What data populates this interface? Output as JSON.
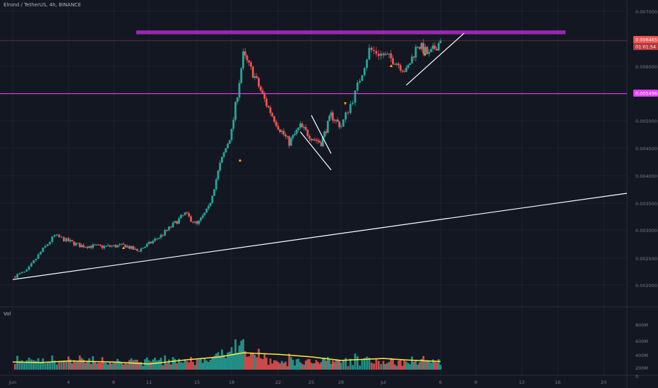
{
  "header": {
    "symbol_title": "Elrond / TetherUS, 4h, BINANCE"
  },
  "volume_pane": {
    "label": "Vol",
    "y_ticks": [
      "800M",
      "600M",
      "400M",
      "200M",
      "0"
    ]
  },
  "price_badges": {
    "last": "0.006465",
    "countdown": "01:01:54",
    "level": "0.005496"
  },
  "colors": {
    "background": "#131722",
    "up": "#26a69a",
    "down": "#ef5350",
    "resistance_zone": "#9c27b0",
    "horizontal_line": "#e040fb",
    "trendline": "#ffffff",
    "volume_ma": "#ffeb3b",
    "markers": "#ffb300",
    "last_badge": "#ef5350"
  },
  "chart_data": {
    "type": "candlestick",
    "title": "Elrond / TetherUS, 4h, BINANCE",
    "x_tick_labels": [
      "Jun",
      "4",
      "8",
      "11",
      "15",
      "18",
      "22",
      "25",
      "28",
      "Jul",
      "6",
      "9",
      "13",
      "16",
      "20"
    ],
    "y_tick_labels": [
      "0.007000",
      "0.006500",
      "0.006000",
      "0.005500",
      "0.005000",
      "0.004500",
      "0.004000",
      "0.003500",
      "0.003000",
      "0.002500",
      "0.002000"
    ],
    "price_range": [
      0.0019,
      0.0071
    ],
    "volume_range_millions": [
      0,
      800
    ],
    "close_path": [
      [
        "May 31",
        0.00215
      ],
      [
        "Jun 1",
        0.00225
      ],
      [
        "Jun 2",
        0.0026
      ],
      [
        "Jun 3",
        0.0029
      ],
      [
        "Jun 4",
        0.0028
      ],
      [
        "Jun 5",
        0.00272
      ],
      [
        "Jun 7",
        0.0027
      ],
      [
        "Jun 9",
        0.00272
      ],
      [
        "Jun 10",
        0.00262
      ],
      [
        "Jun 11",
        0.00275
      ],
      [
        "Jun 12",
        0.0029
      ],
      [
        "Jun 13",
        0.0031
      ],
      [
        "Jun 14",
        0.0033
      ],
      [
        "Jun 15",
        0.0031
      ],
      [
        "Jun 16",
        0.0034
      ],
      [
        "Jun 17",
        0.0042
      ],
      [
        "Jun 18",
        0.0048
      ],
      [
        "Jun 19",
        0.0062
      ],
      [
        "Jun 20",
        0.0058
      ],
      [
        "Jun 21",
        0.0053
      ],
      [
        "Jun 22",
        0.0049
      ],
      [
        "Jun 23",
        0.0046
      ],
      [
        "Jun 24",
        0.0049
      ],
      [
        "Jun 25",
        0.0047
      ],
      [
        "Jun 26",
        0.0046
      ],
      [
        "Jun 27",
        0.0051
      ],
      [
        "Jun 28",
        0.0049
      ],
      [
        "Jun 29",
        0.0055
      ],
      [
        "Jun 30",
        0.0063
      ],
      [
        "Jul 1",
        0.0062
      ],
      [
        "Jul 2",
        0.0061
      ],
      [
        "Jul 3",
        0.0059
      ],
      [
        "Jul 4",
        0.0064
      ],
      [
        "Jul 5",
        0.0062
      ],
      [
        "Jul 6",
        0.006465
      ]
    ],
    "levels": {
      "resistance_zone": [
        0.00658,
        0.00665
      ],
      "support_line": 0.005496
    },
    "trendlines": [
      {
        "name": "long-term support",
        "from": [
          "May 31",
          0.0021
        ],
        "to": [
          "Jun 20 +",
          0.0037
        ]
      },
      {
        "name": "wedge upper",
        "from": [
          "Jun 25",
          0.0051
        ],
        "to": [
          "Jun 27",
          0.0044
        ]
      },
      {
        "name": "wedge lower",
        "from": [
          "Jun 24",
          0.0048
        ],
        "to": [
          "Jun 27",
          0.0041
        ]
      },
      {
        "name": "rising support",
        "from": [
          "Jul 3",
          0.00565
        ],
        "to": [
          "Jul 8",
          0.0066
        ]
      }
    ],
    "volume_ma_path_millions": [
      [
        "May 31",
        150
      ],
      [
        "Jun 2",
        140
      ],
      [
        "Jun 4",
        170
      ],
      [
        "Jun 8",
        150
      ],
      [
        "Jun 11",
        110
      ],
      [
        "Jun 14",
        190
      ],
      [
        "Jun 17",
        250
      ],
      [
        "Jun 19",
        330
      ],
      [
        "Jun 22",
        300
      ],
      [
        "Jun 25",
        250
      ],
      [
        "Jun 28",
        180
      ],
      [
        "Jul 1",
        220
      ],
      [
        "Jul 3",
        190
      ],
      [
        "Jul 6",
        160
      ]
    ],
    "grid": true,
    "price_axis": "right"
  }
}
